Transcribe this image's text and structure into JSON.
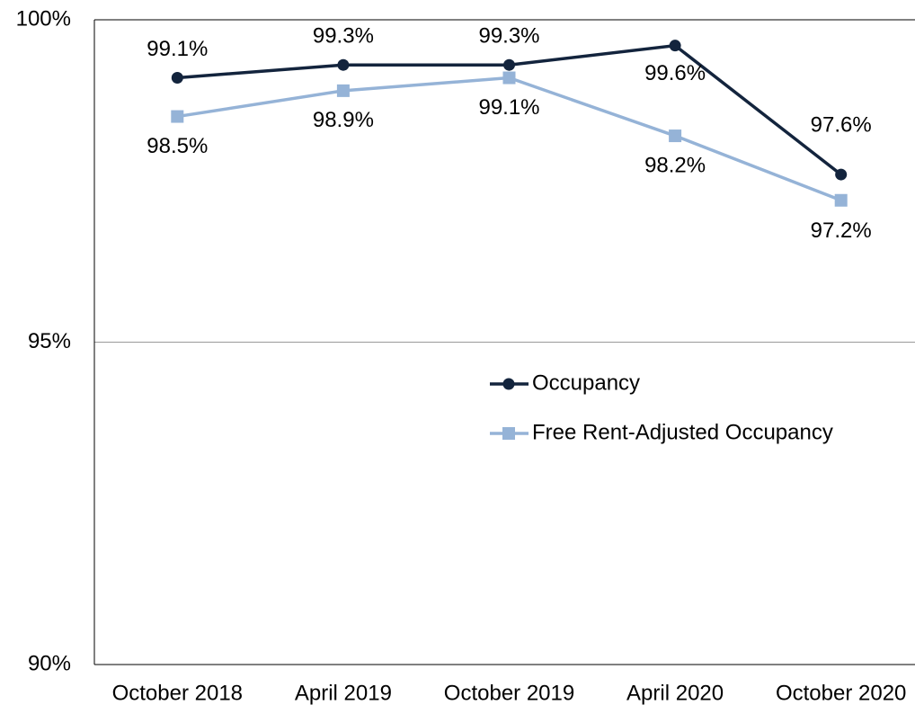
{
  "chart_data": {
    "type": "line",
    "categories": [
      "October 2018",
      "April 2019",
      "October 2019",
      "April 2020",
      "October 2020"
    ],
    "series": [
      {
        "name": "Occupancy",
        "color": "#13243d",
        "marker": "circle",
        "values": [
          99.1,
          99.3,
          99.3,
          99.6,
          97.6
        ],
        "value_labels": [
          "99.1%",
          "99.3%",
          "99.3%",
          "99.6%",
          "97.6%"
        ]
      },
      {
        "name": "Free Rent-Adjusted Occupancy",
        "color": "#95b3d7",
        "marker": "square",
        "values": [
          98.5,
          98.9,
          99.1,
          98.2,
          97.2
        ],
        "value_labels": [
          "98.5%",
          "98.9%",
          "99.1%",
          "98.2%",
          "97.2%"
        ]
      }
    ],
    "ylim": [
      90,
      100
    ],
    "yticks": [
      {
        "value": 90,
        "label": "90%"
      },
      {
        "value": 95,
        "label": "95%"
      },
      {
        "value": 100,
        "label": "100%"
      }
    ],
    "grid": true
  }
}
